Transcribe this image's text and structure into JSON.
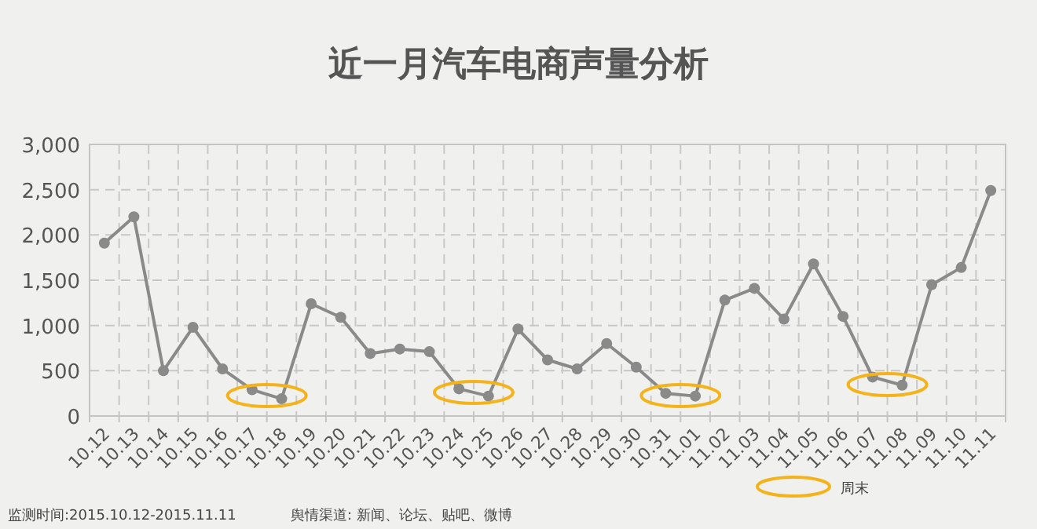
{
  "chart_data": {
    "type": "line",
    "title": "近一月汽车电商声量分析",
    "categories": [
      "10.12",
      "10.13",
      "10.14",
      "10.15",
      "10.16",
      "10.17",
      "10.18",
      "10.19",
      "10.20",
      "10.21",
      "10.22",
      "10.23",
      "10.24",
      "10.25",
      "10.26",
      "10.27",
      "10.28",
      "10.29",
      "10.30",
      "10.31",
      "11.01",
      "11.02",
      "11.03",
      "11.04",
      "11.05",
      "11.06",
      "11.07",
      "11.08",
      "11.09",
      "11.10",
      "11.11"
    ],
    "series": [
      {
        "color": "#8a8a8a",
        "values": [
          1910,
          2200,
          500,
          980,
          520,
          290,
          190,
          1240,
          1090,
          690,
          740,
          710,
          300,
          220,
          960,
          620,
          520,
          800,
          540,
          250,
          220,
          1280,
          1410,
          1070,
          1680,
          1100,
          430,
          340,
          1450,
          1640,
          2490
        ]
      }
    ],
    "ylim": [
      0,
      3000
    ],
    "yticks": [
      {
        "value": 0,
        "label": "0"
      },
      {
        "value": 500,
        "label": "500"
      },
      {
        "value": 1000,
        "label": "1,000"
      },
      {
        "value": 1500,
        "label": "1,500"
      },
      {
        "value": 2000,
        "label": "2,000"
      },
      {
        "value": 2500,
        "label": "2,500"
      },
      {
        "value": 3000,
        "label": "3,000"
      }
    ],
    "grid": true,
    "marker": "circle",
    "line_style": "solid",
    "annotations": [
      "监测时间:2015.10.12-2015.11.11",
      "舆情渠道: 新闻、论坛、贴吧、微博",
      "周末"
    ]
  }
}
